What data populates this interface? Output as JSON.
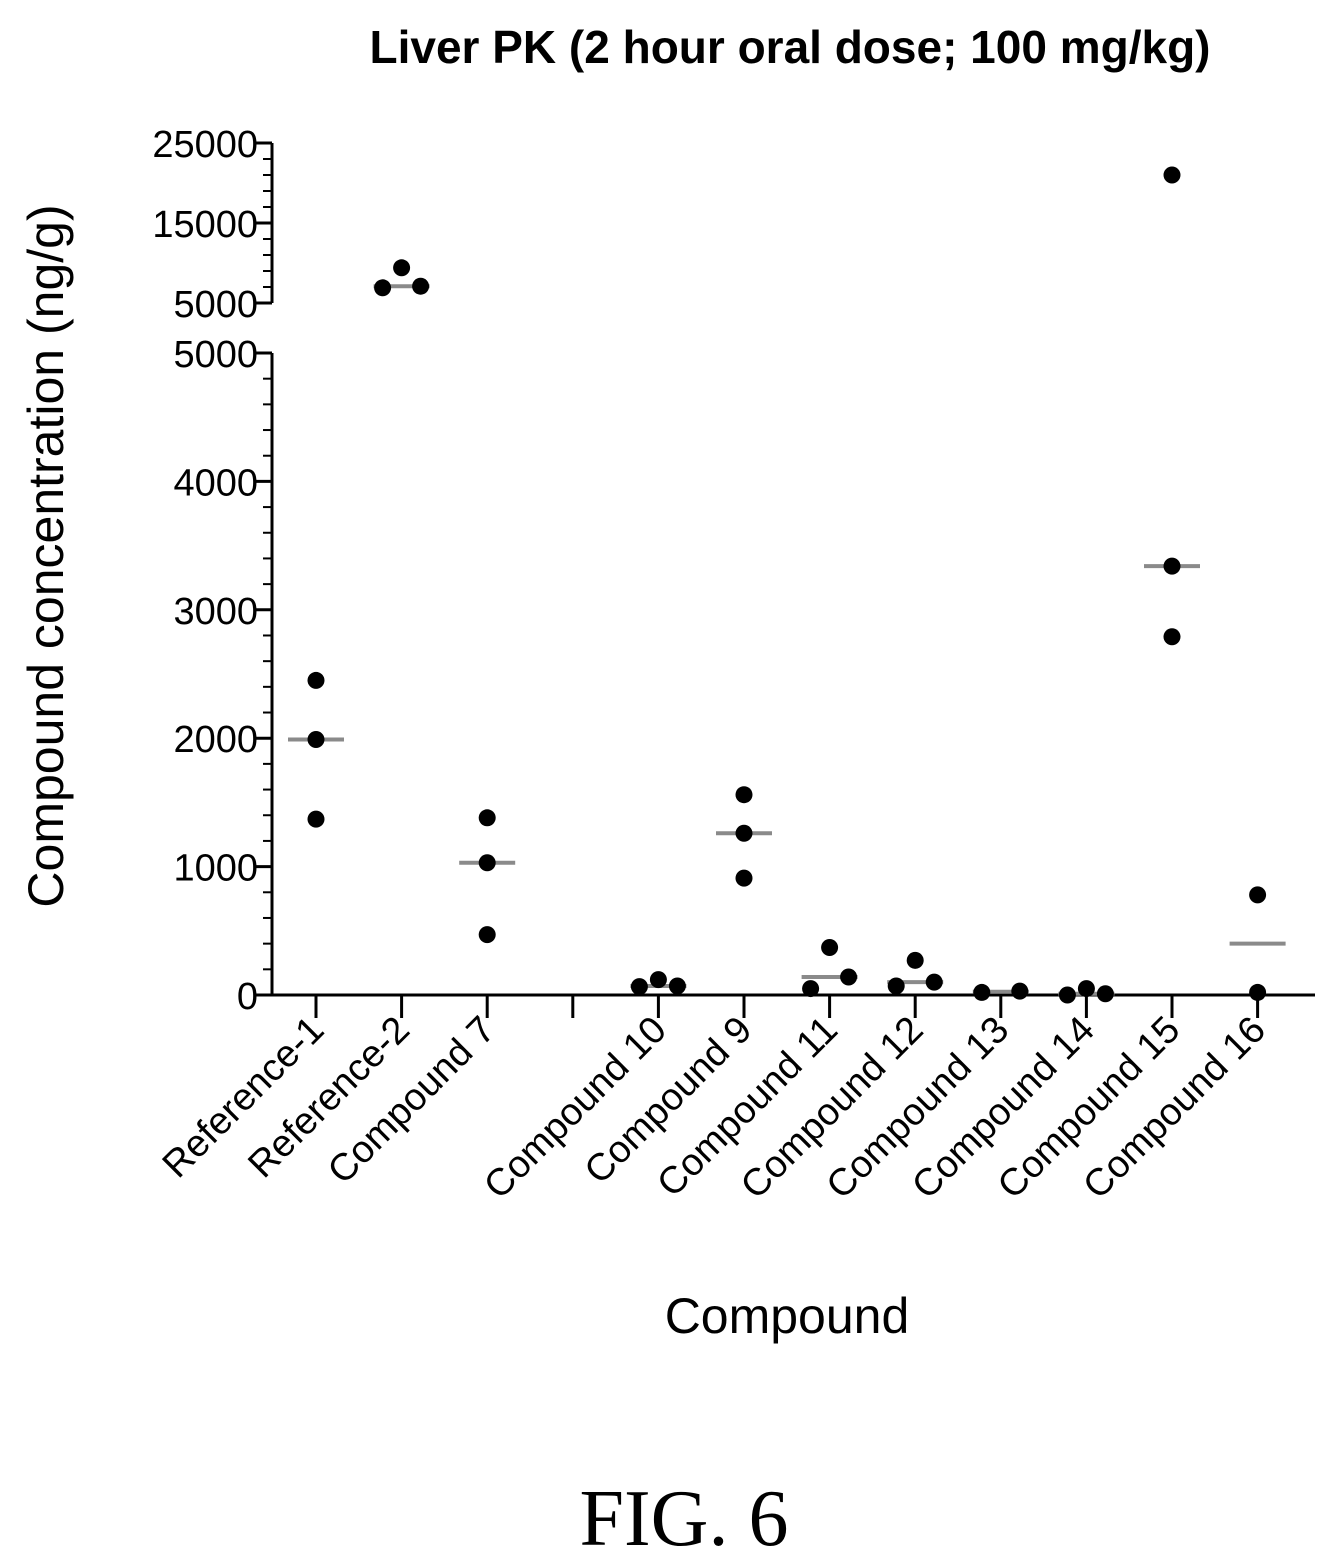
{
  "chart_data": {
    "type": "scatter",
    "title": "Liver PK (2 hour oral dose; 100 mg/kg)",
    "xlabel": "Compound",
    "ylabel": "Compound  concentration (ng/g)",
    "y_axis_break": {
      "lower_segment": {
        "range": [
          0,
          5000
        ],
        "ticks": [
          "0",
          "1000",
          "2000",
          "3000",
          "4000",
          "5000"
        ]
      },
      "upper_segment": {
        "range": [
          5000,
          25000
        ],
        "ticks": [
          "5000",
          "15000",
          "25000"
        ]
      }
    },
    "categories": [
      "Reference-1",
      "Reference-2",
      "Compound 7",
      "",
      "Compound 10",
      "Compound 9",
      "Compound 11",
      "Compound 12",
      "Compound 13",
      "Compound 14",
      "Compound 15",
      "Compound 16"
    ],
    "groups": [
      {
        "category": "Reference-1",
        "values": [
          2450,
          1990,
          1370
        ],
        "median": 1990
      },
      {
        "category": "Reference-2",
        "values": [
          6900,
          9400,
          7100
        ],
        "median": 7100
      },
      {
        "category": "Compound 7",
        "values": [
          1380,
          1030,
          470
        ],
        "median": 1030
      },
      {
        "category": "Compound 10",
        "values": [
          65,
          120,
          70
        ],
        "median": 70
      },
      {
        "category": "Compound 9",
        "values": [
          1560,
          1260,
          910
        ],
        "median": 1260
      },
      {
        "category": "Compound 11",
        "values": [
          50,
          370,
          140
        ],
        "median": 140
      },
      {
        "category": "Compound 12",
        "values": [
          70,
          270,
          100
        ],
        "median": 100
      },
      {
        "category": "Compound 13",
        "values": [
          20,
          30
        ],
        "median": 25
      },
      {
        "category": "Compound 14",
        "values": [
          0,
          50,
          10
        ],
        "median": 10
      },
      {
        "category": "Compound 15",
        "values": [
          21000,
          3340,
          2790
        ],
        "median": 3340
      },
      {
        "category": "Compound 16",
        "values": [
          780,
          20
        ],
        "median": 400
      }
    ],
    "grid": false,
    "legend": "none"
  },
  "caption": "FIG. 6"
}
